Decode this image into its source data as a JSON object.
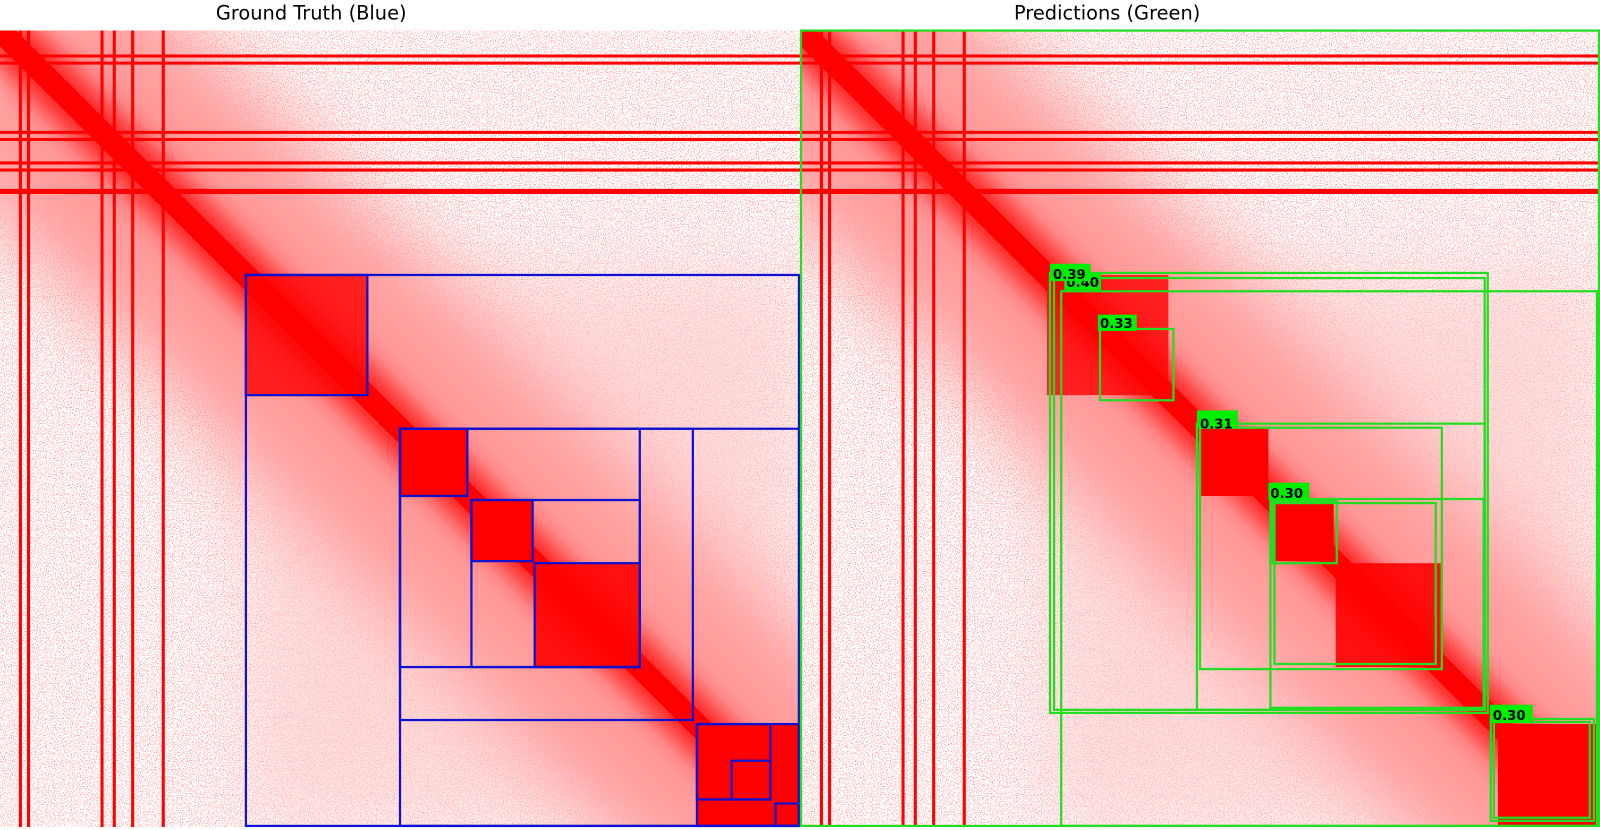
{
  "panels": [
    {
      "title": "Ground Truth (Blue)"
    },
    {
      "title": "Predictions (Green)",
      "scores": [
        "0.39",
        "0.40",
        "0.33",
        "0.31",
        "0.30",
        "0.30"
      ]
    }
  ]
}
